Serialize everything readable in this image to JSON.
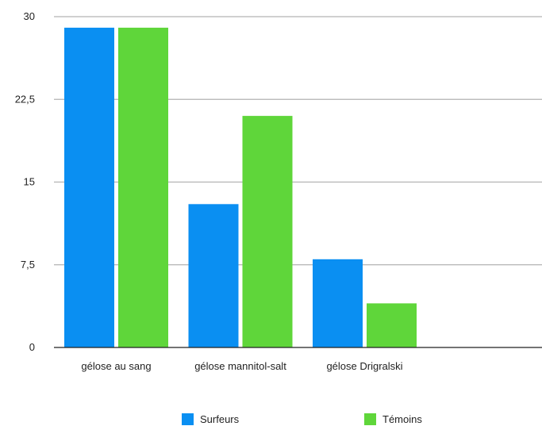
{
  "chart_data": {
    "type": "bar",
    "categories": [
      "gélose au sang",
      "gélose mannitol-salt",
      "gélose Drigralski"
    ],
    "series": [
      {
        "name": "Surfeurs",
        "values": [
          29,
          13,
          8
        ],
        "color": "#0a8ff2"
      },
      {
        "name": "Témoins",
        "values": [
          29,
          21,
          4
        ],
        "color": "#5fd63a"
      }
    ],
    "yticks": [
      "0",
      "7,5",
      "15",
      "22,5",
      "30"
    ],
    "ytick_values": [
      0,
      7.5,
      15,
      22.5,
      30
    ],
    "ylim": [
      0,
      30
    ],
    "grid": true,
    "legend_position": "bottom"
  }
}
